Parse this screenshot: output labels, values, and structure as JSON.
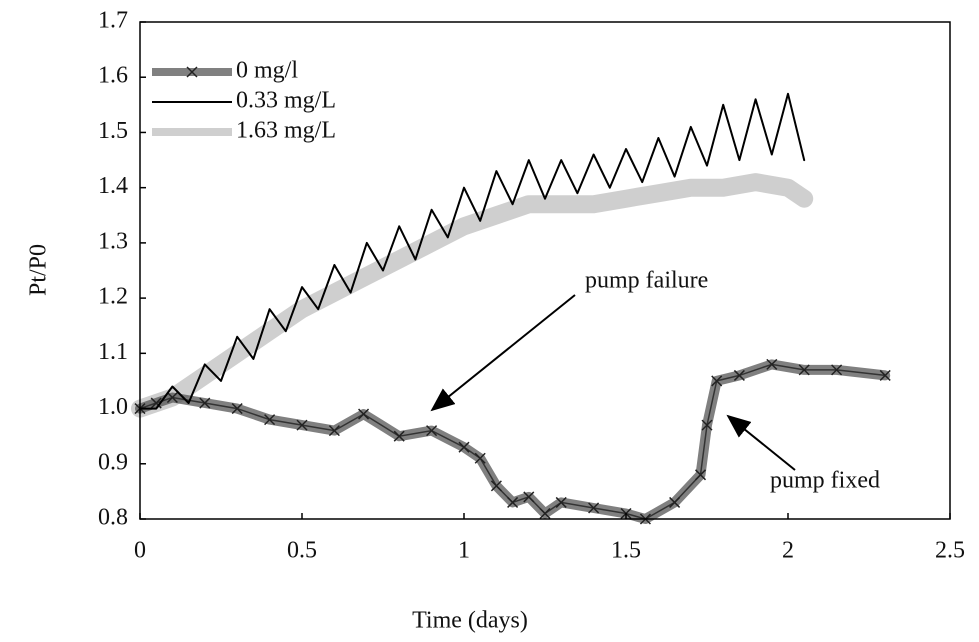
{
  "chart_data": {
    "type": "line",
    "xlabel": "Time (days)",
    "ylabel": "Pt/P0",
    "xlim": [
      0,
      2.5
    ],
    "xticks": [
      0,
      0.5,
      1,
      1.5,
      2,
      2.5
    ],
    "ylim": [
      0.8,
      1.7
    ],
    "yticks": [
      0.8,
      0.9,
      {
        "value": 1,
        "label": "1.0"
      },
      1.1,
      1.2,
      1.3,
      1.4,
      1.5,
      1.6,
      1.7
    ],
    "legend": "upper left",
    "series": [
      {
        "name": "0 mg/l",
        "color": "#555555",
        "marker": "x",
        "x": [
          0,
          0.05,
          0.1,
          0.2,
          0.3,
          0.4,
          0.5,
          0.6,
          0.69,
          0.8,
          0.9,
          1.0,
          1.05,
          1.1,
          1.15,
          1.2,
          1.25,
          1.3,
          1.4,
          1.5,
          1.56,
          1.65,
          1.73,
          1.75,
          1.78,
          1.85,
          1.95,
          2.05,
          2.15,
          2.3
        ],
        "values": [
          1.0,
          1.01,
          1.02,
          1.01,
          1.0,
          0.98,
          0.97,
          0.96,
          0.99,
          0.95,
          0.96,
          0.93,
          0.91,
          0.86,
          0.83,
          0.84,
          0.81,
          0.83,
          0.82,
          0.81,
          0.8,
          0.83,
          0.88,
          0.97,
          1.05,
          1.06,
          1.08,
          1.07,
          1.07,
          1.06
        ]
      },
      {
        "name": "0.33 mg/L",
        "color": "#000000",
        "x": [
          0,
          0.05,
          0.1,
          0.15,
          0.2,
          0.25,
          0.3,
          0.35,
          0.4,
          0.45,
          0.5,
          0.55,
          0.6,
          0.65,
          0.7,
          0.75,
          0.8,
          0.85,
          0.9,
          0.95,
          1.0,
          1.05,
          1.1,
          1.15,
          1.2,
          1.25,
          1.3,
          1.35,
          1.4,
          1.45,
          1.5,
          1.55,
          1.6,
          1.65,
          1.7,
          1.75,
          1.8,
          1.85,
          1.9,
          1.95,
          2.0,
          2.05
        ],
        "values": [
          1.0,
          1.0,
          1.04,
          1.01,
          1.08,
          1.05,
          1.13,
          1.09,
          1.18,
          1.14,
          1.22,
          1.18,
          1.26,
          1.21,
          1.3,
          1.25,
          1.33,
          1.27,
          1.36,
          1.31,
          1.4,
          1.34,
          1.43,
          1.37,
          1.45,
          1.38,
          1.45,
          1.39,
          1.46,
          1.4,
          1.47,
          1.41,
          1.49,
          1.42,
          1.51,
          1.44,
          1.55,
          1.45,
          1.56,
          1.46,
          1.57,
          1.45
        ]
      },
      {
        "name": "1.63 mg/L",
        "color": "#bbbbbb",
        "x": [
          0,
          0.1,
          0.2,
          0.3,
          0.4,
          0.5,
          0.6,
          0.7,
          0.8,
          0.9,
          1.0,
          1.1,
          1.2,
          1.3,
          1.4,
          1.5,
          1.6,
          1.7,
          1.8,
          1.9,
          2.0,
          2.05
        ],
        "values": [
          1.0,
          1.02,
          1.06,
          1.1,
          1.14,
          1.18,
          1.21,
          1.24,
          1.27,
          1.3,
          1.33,
          1.35,
          1.37,
          1.37,
          1.37,
          1.38,
          1.39,
          1.4,
          1.4,
          1.41,
          1.4,
          1.38
        ]
      }
    ],
    "annotations": [
      "pump failure",
      "pump fixed"
    ]
  }
}
